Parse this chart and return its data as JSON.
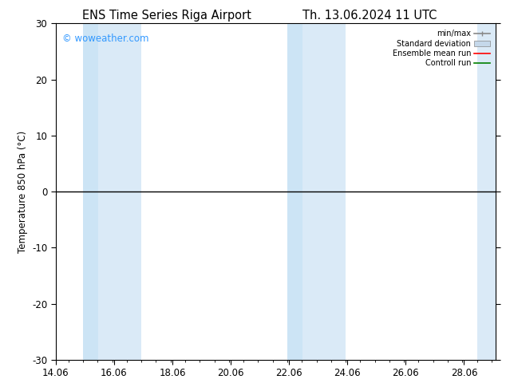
{
  "title_left": "ENS Time Series Riga Airport",
  "title_right": "Th. 13.06.2024 11 UTC",
  "ylabel": "Temperature 850 hPa (°C)",
  "watermark": "© woweather.com",
  "watermark_color": "#3399ff",
  "xlim_start": 14.06,
  "xlim_end": 29.15,
  "ylim": [
    -30,
    30
  ],
  "yticks": [
    -30,
    -20,
    -10,
    0,
    10,
    20,
    30
  ],
  "xticks": [
    14.06,
    16.06,
    18.06,
    20.06,
    22.06,
    24.06,
    26.06,
    28.06
  ],
  "xtick_labels": [
    "14.06",
    "16.06",
    "18.06",
    "20.06",
    "22.06",
    "24.06",
    "26.06",
    "28.06"
  ],
  "shaded_bands": [
    {
      "xmin": 15.0,
      "xmax": 15.52,
      "color": "#cce4f5"
    },
    {
      "xmin": 15.52,
      "xmax": 17.0,
      "color": "#daeaf7"
    },
    {
      "xmin": 22.0,
      "xmax": 22.52,
      "color": "#cce4f5"
    },
    {
      "xmin": 22.52,
      "xmax": 24.0,
      "color": "#daeaf7"
    },
    {
      "xmin": 28.5,
      "xmax": 29.15,
      "color": "#daeaf7"
    }
  ],
  "zero_line_color": "#000000",
  "control_run_color": "#008000",
  "ensemble_mean_color": "#ff0000",
  "minmax_color": "#888888",
  "stddev_color": "#c5d8ea",
  "background_color": "#ffffff",
  "plot_bg_color": "#ffffff",
  "legend_labels": [
    "min/max",
    "Standard deviation",
    "Ensemble mean run",
    "Controll run"
  ],
  "legend_colors": [
    "#888888",
    "#c5d8ea",
    "#ff0000",
    "#008000"
  ],
  "title_fontsize": 10.5,
  "label_fontsize": 8.5,
  "tick_fontsize": 8.5
}
